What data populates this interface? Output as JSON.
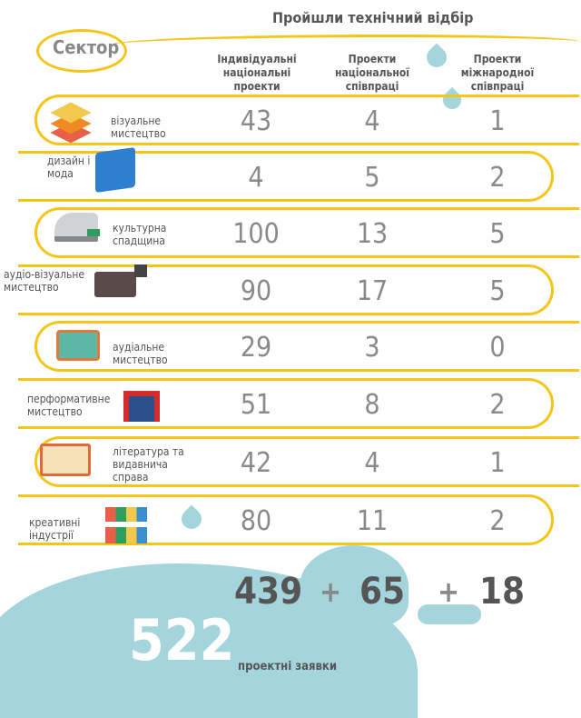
{
  "header": {
    "title": "Пройшли технічний відбір",
    "sector_label": "Сектор",
    "columns": [
      "Індивідуальні національні проекти",
      "Проекти національної співпраці",
      "Проекти міжнародної співпраці"
    ]
  },
  "colors": {
    "loop": "#f5c518",
    "splash": "#a5d5dc",
    "numbers": "#8a8a8a"
  },
  "rows": [
    {
      "label": "візуальне мистецтво",
      "icon": "layers-icon",
      "values": [
        "43",
        "4",
        "1"
      ]
    },
    {
      "label": "дизайн і мода",
      "icon": "blueprint-icon",
      "values": [
        "4",
        "5",
        "2"
      ]
    },
    {
      "label": "культурна спадщина",
      "icon": "museum-building-icon",
      "values": [
        "100",
        "13",
        "5"
      ]
    },
    {
      "label": "аудіо-візуальне мистецтво",
      "icon": "video-camera-icon",
      "values": [
        "90",
        "17",
        "5"
      ]
    },
    {
      "label": "аудіальне мистецтво",
      "icon": "radio-icon",
      "values": [
        "29",
        "3",
        "0"
      ]
    },
    {
      "label": "перформативне мистецтво",
      "icon": "theater-stage-icon",
      "values": [
        "51",
        "8",
        "2"
      ]
    },
    {
      "label": "література та видавнича справа",
      "icon": "open-book-icon",
      "values": [
        "42",
        "4",
        "1"
      ]
    },
    {
      "label": "креативні індустрії",
      "icon": "bunting-flags-icon",
      "values": [
        "80",
        "11",
        "2"
      ]
    }
  ],
  "totals": {
    "values": [
      "439",
      "65",
      "18"
    ],
    "plus": "+",
    "grand_total": "522",
    "grand_total_label": "проектні заявки"
  },
  "chart_data": {
    "type": "table",
    "columns": [
      "Сектор",
      "Індивідуальні національні проекти",
      "Проекти національної співпраці",
      "Проекти міжнародної співпраці"
    ],
    "rows": [
      [
        "візуальне мистецтво",
        43,
        4,
        1
      ],
      [
        "дизайн і мода",
        4,
        5,
        2
      ],
      [
        "культурна спадщина",
        100,
        13,
        5
      ],
      [
        "аудіо-візуальне мистецтво",
        90,
        17,
        5
      ],
      [
        "аудіальне мистецтво",
        29,
        3,
        0
      ],
      [
        "перформативне мистецтво",
        51,
        8,
        2
      ],
      [
        "література та видавнича справа",
        42,
        4,
        1
      ],
      [
        "креативні індустрії",
        80,
        11,
        2
      ]
    ],
    "totals": [
      439,
      65,
      18
    ],
    "grand_total": 522
  }
}
